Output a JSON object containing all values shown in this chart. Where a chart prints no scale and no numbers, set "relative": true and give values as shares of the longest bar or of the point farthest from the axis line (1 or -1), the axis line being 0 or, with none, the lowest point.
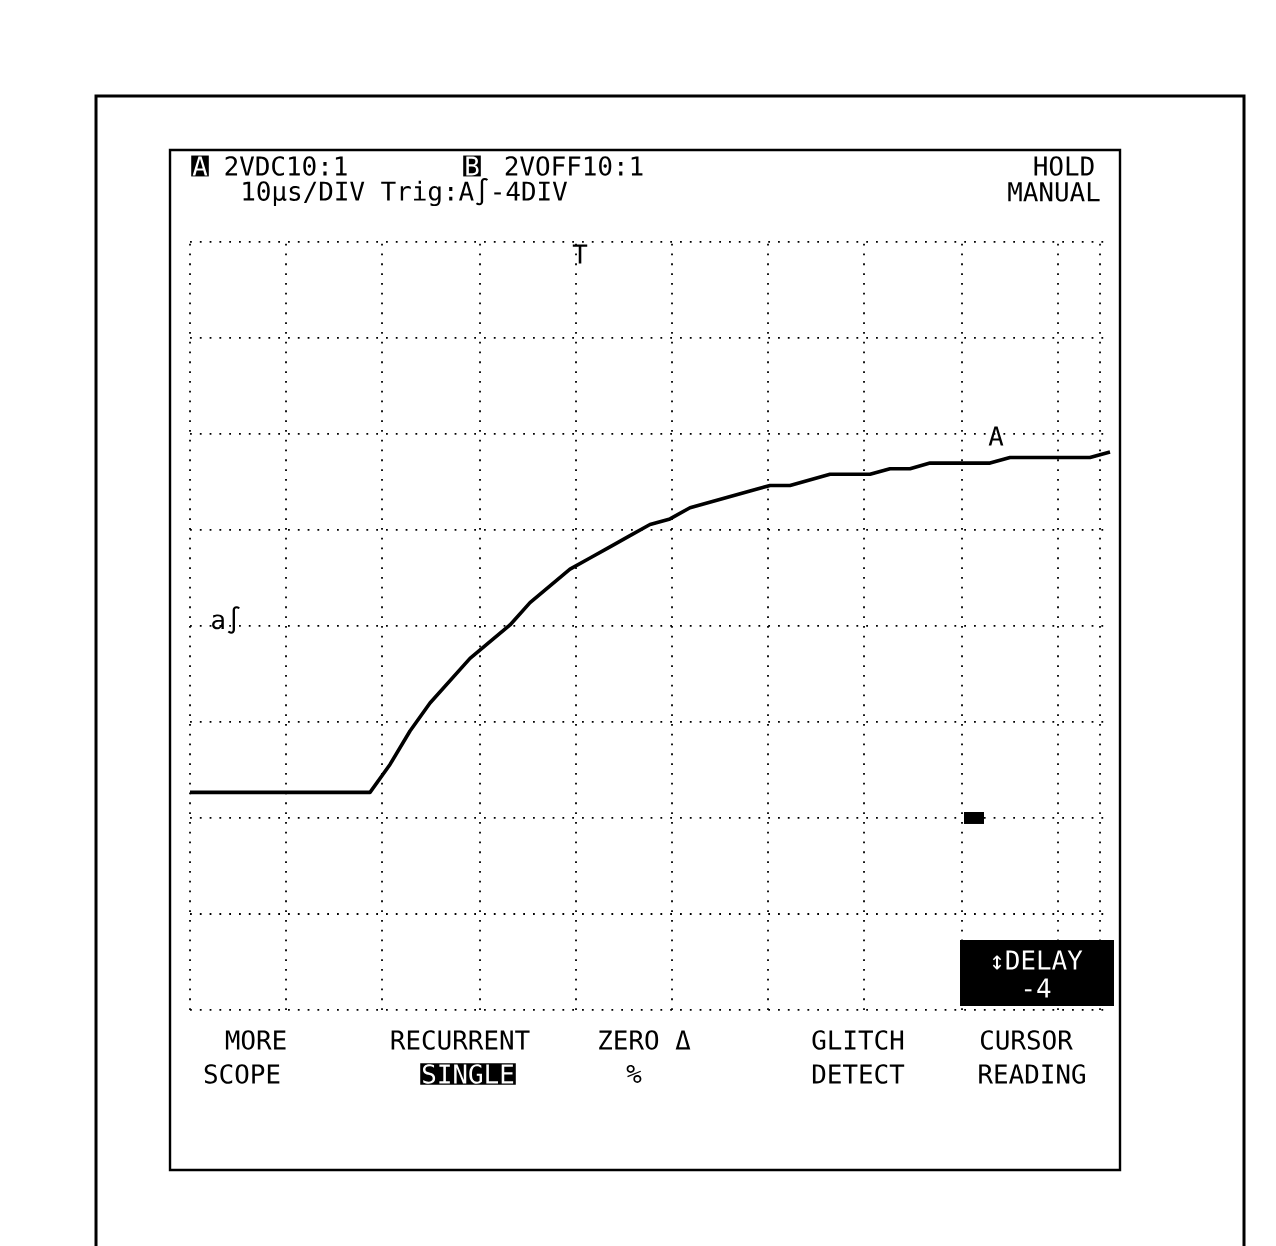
{
  "chart_data": {
    "type": "line",
    "relative": true,
    "grid": true,
    "categories": [
      null,
      null,
      null,
      null,
      null,
      null,
      null,
      null,
      null,
      null,
      null,
      null,
      null,
      null,
      null,
      null,
      null,
      null,
      null,
      null,
      null,
      null,
      null,
      null,
      null,
      null,
      null,
      null,
      null,
      null,
      null,
      null,
      null,
      null,
      null,
      null,
      null,
      null,
      null,
      null,
      null,
      null,
      null,
      null,
      null,
      null,
      null
    ],
    "series": [
      {
        "color": "#000000",
        "values": [
          0.39,
          0.39,
          0.39,
          0.39,
          0.39,
          0.39,
          0.39,
          0.39,
          0.39,
          0.39,
          0.44,
          0.5,
          0.55,
          0.59,
          0.63,
          0.66,
          0.69,
          0.73,
          0.76,
          0.79,
          0.81,
          0.83,
          0.85,
          0.87,
          0.88,
          0.9,
          0.91,
          0.92,
          0.93,
          0.94,
          0.94,
          0.95,
          0.96,
          0.96,
          0.96,
          0.97,
          0.97,
          0.98,
          0.98,
          0.98,
          0.98,
          0.99,
          0.99,
          0.99,
          0.99,
          0.99,
          1
        ]
      }
    ],
    "annotations": [
      "A",
      "2VDC10:1",
      "B",
      "2VOFF10:1",
      "HOLD",
      "10µs/DIV Trig:A∫-4DIV",
      "MANUAL",
      "T",
      "a∫",
      "A",
      "↕DELAY",
      "-4",
      "MORE",
      "SCOPE",
      "RECURRENT",
      "SINGLE",
      "ZERO Δ",
      "%",
      "GLITCH",
      "DETECT",
      "CURSOR",
      "READING"
    ]
  }
}
